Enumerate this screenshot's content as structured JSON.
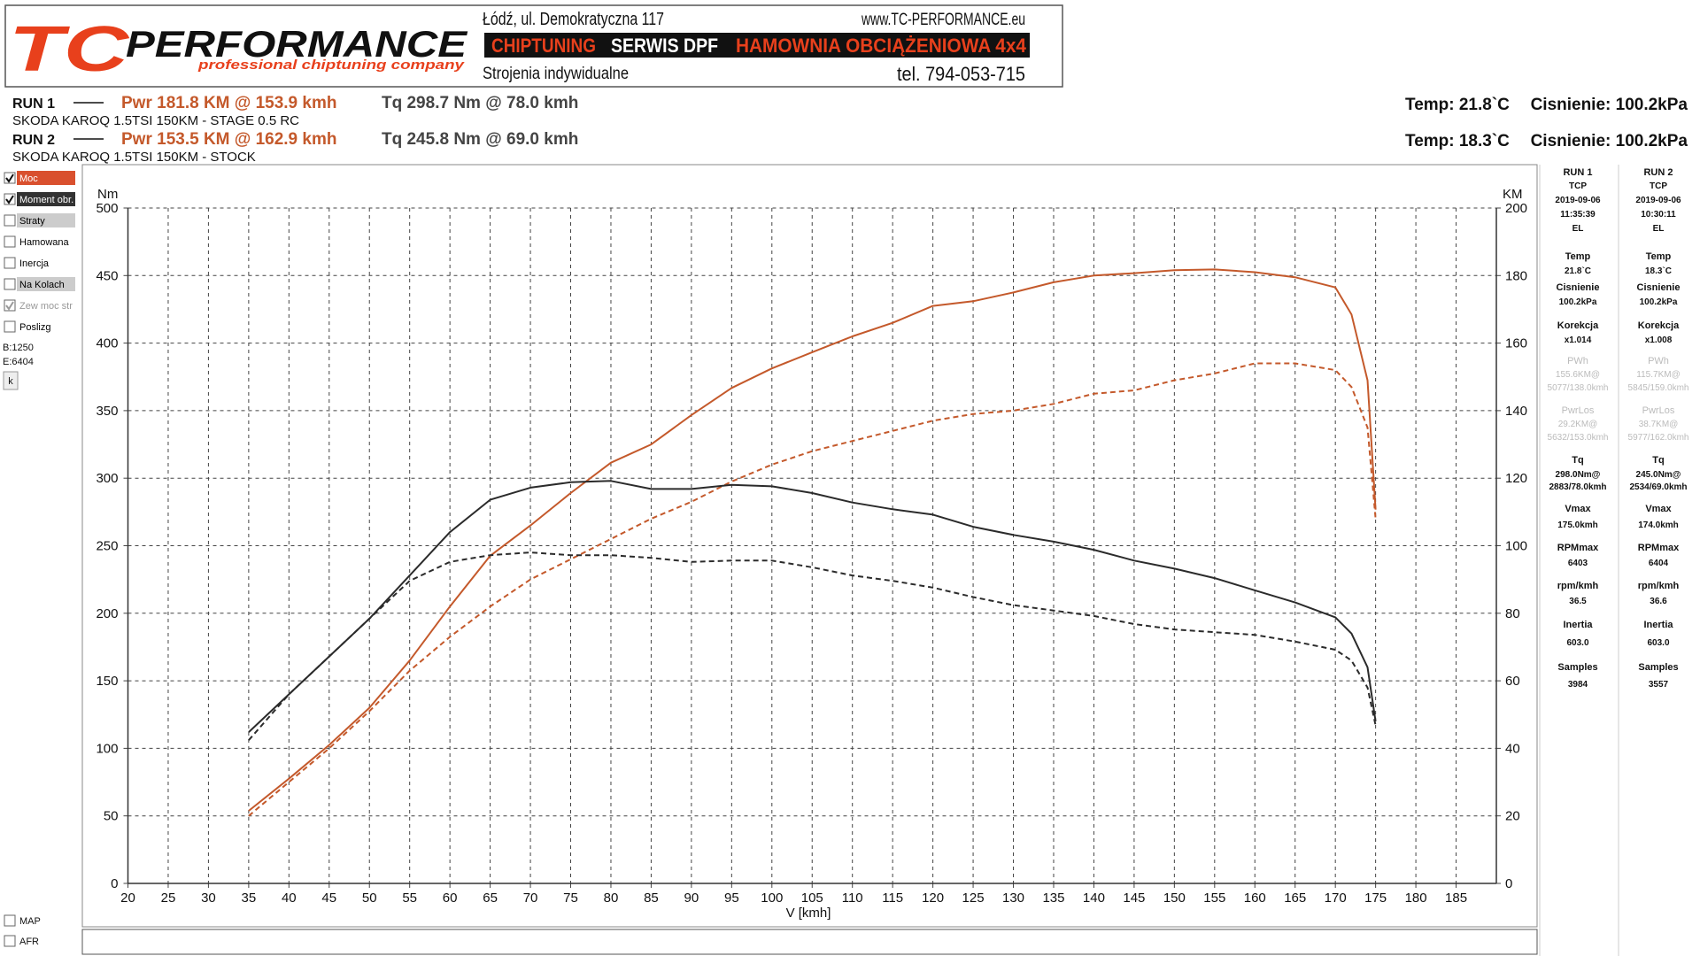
{
  "header": {
    "logo_tc": "TC",
    "logo_name": "PERFORMANCE",
    "slogan": "professional chiptuning company",
    "address": "Łódź, ul. Demokratyczna 117",
    "website": "www.TC-PERFORMANCE.eu",
    "banner": [
      "CHIPTUNING",
      "SERWIS DPF",
      "HAMOWNIA OBCIĄŻENIOWA 4x4"
    ],
    "tagline": "Strojenia indywidualne",
    "phone": "tel. 794-053-715"
  },
  "runs": [
    {
      "label": "RUN 1",
      "car": "SKODA KAROQ 1.5TSI 150KM - STAGE 0.5 RC",
      "power": "Pwr  181.8 KM @ 153.9 kmh",
      "torque": "Tq 298.7 Nm @ 78.0 kmh",
      "temp": "Temp: 21.8`C",
      "pressure": "Cisnienie: 100.2kPa"
    },
    {
      "label": "RUN 2",
      "car": "SKODA KAROQ 1.5TSI 150KM - STOCK",
      "power": "Pwr  153.5 KM @ 162.9 kmh",
      "torque": "Tq 245.8 Nm @ 69.0 kmh",
      "temp": "Temp: 18.3`C",
      "pressure": "Cisnienie: 100.2kPa"
    }
  ],
  "options": [
    {
      "label": "Moc",
      "checked": true,
      "bg": "#d9502e",
      "fg": "#ffffff"
    },
    {
      "label": "Moment obr.",
      "checked": true,
      "bg": "#333333",
      "fg": "#ffffff"
    },
    {
      "label": "Straty",
      "checked": false,
      "bg": "#cccccc",
      "fg": "#000000"
    },
    {
      "label": "Hamowana",
      "checked": false,
      "bg": "#ffffff",
      "fg": "#000000"
    },
    {
      "label": "Inercja",
      "checked": false,
      "bg": "#ffffff",
      "fg": "#000000"
    },
    {
      "label": "Na Kolach",
      "checked": false,
      "bg": "#cccccc",
      "fg": "#000000"
    },
    {
      "label": "Zew moc str",
      "checked": true,
      "bg": "#ffffff",
      "fg": "#999999"
    },
    {
      "label": "Poslizg",
      "checked": false,
      "bg": "#ffffff",
      "fg": "#000000"
    }
  ],
  "info": [
    "B:1250",
    "E:6404"
  ],
  "button": "k",
  "bottom_options": [
    "MAP",
    "AFR"
  ],
  "panel": [
    [
      "RUN 1",
      "TCP",
      "2019-09-06",
      "11:35:39",
      "EL",
      "Temp",
      "21.8`C",
      "Cisnienie",
      "100.2kPa",
      "Korekcja",
      "x1.014",
      "PWh",
      "155.6KM@",
      "5077/138.0kmh",
      "PwrLos",
      "29.2KM@",
      "5632/153.0kmh",
      "Tq",
      "298.0Nm@",
      "2883/78.0kmh",
      "Vmax",
      "175.0kmh",
      "RPMmax",
      "6403",
      "rpm/kmh",
      "36.5",
      "Inertia",
      "603.0",
      "Samples",
      "3984"
    ],
    [
      "RUN 2",
      "TCP",
      "2019-09-06",
      "10:30:11",
      "EL",
      "Temp",
      "18.3`C",
      "Cisnienie",
      "100.2kPa",
      "Korekcja",
      "x1.008",
      "PWh",
      "115.7KM@",
      "5845/159.0kmh",
      "PwrLos",
      "38.7KM@",
      "5977/162.0kmh",
      "Tq",
      "245.0Nm@",
      "2534/69.0kmh",
      "Vmax",
      "174.0kmh",
      "RPMmax",
      "6404",
      "rpm/kmh",
      "36.6",
      "Inertia",
      "603.0",
      "Samples",
      "3557"
    ]
  ],
  "chart_data": {
    "type": "line",
    "xlabel": "V [kmh]",
    "ylabel": "Nm",
    "y2label": "KM",
    "xlim": [
      20,
      190
    ],
    "xticks": [
      20,
      25,
      30,
      35,
      40,
      45,
      50,
      55,
      60,
      65,
      70,
      75,
      80,
      85,
      90,
      95,
      100,
      105,
      110,
      115,
      120,
      125,
      130,
      135,
      140,
      145,
      150,
      155,
      160,
      165,
      170,
      175,
      180,
      185
    ],
    "ylim": [
      0,
      500
    ],
    "yticks": [
      0,
      50,
      100,
      150,
      200,
      250,
      300,
      350,
      400,
      450,
      500
    ],
    "y2lim": [
      0,
      200
    ],
    "y2ticks": [
      0,
      20,
      40,
      60,
      80,
      100,
      120,
      140,
      160,
      180,
      200
    ],
    "grid": true,
    "x": [
      35,
      40,
      45,
      50,
      55,
      60,
      65,
      70,
      75,
      80,
      85,
      90,
      95,
      100,
      105,
      110,
      115,
      120,
      125,
      130,
      135,
      140,
      145,
      150,
      155,
      160,
      165,
      170,
      172,
      174,
      175
    ],
    "series": [
      {
        "color": "#c4592b",
        "axis": "y2",
        "dashed": false,
        "values": [
          21.5,
          31,
          41,
          52,
          66,
          82,
          97,
          106,
          115.6,
          124.6,
          130,
          138.7,
          146.7,
          152.5,
          157.3,
          162,
          166,
          171,
          172.4,
          175,
          178,
          180,
          180.7,
          181.6,
          181.8,
          181,
          179.5,
          176.5,
          168.5,
          149,
          110.7
        ]
      },
      {
        "color": "#c4592b",
        "axis": "y2",
        "dashed": true,
        "values": [
          20,
          30,
          40,
          51,
          63,
          73,
          82,
          90,
          96,
          102,
          108,
          113,
          119,
          124,
          128,
          131,
          134,
          137,
          139,
          140,
          142,
          145,
          146,
          149,
          151,
          154,
          154,
          152,
          147,
          135,
          108
        ]
      },
      {
        "color": "#2b2b2b",
        "axis": "y",
        "dashed": false,
        "values": [
          112,
          140,
          168,
          196,
          228,
          260,
          284,
          293,
          297,
          298,
          292,
          292,
          295,
          294,
          289,
          282,
          277,
          273,
          264,
          258,
          253,
          247,
          239,
          233,
          226,
          217,
          208,
          197,
          185,
          160,
          120
        ]
      },
      {
        "color": "#2b2b2b",
        "axis": "y",
        "dashed": true,
        "values": [
          106,
          140,
          168,
          196,
          224,
          238,
          243,
          245,
          243,
          243,
          241,
          238,
          239,
          239,
          234,
          228,
          224,
          219,
          212,
          206,
          202,
          198,
          192,
          188,
          186,
          184,
          179,
          173,
          165,
          145,
          117
        ]
      }
    ]
  }
}
